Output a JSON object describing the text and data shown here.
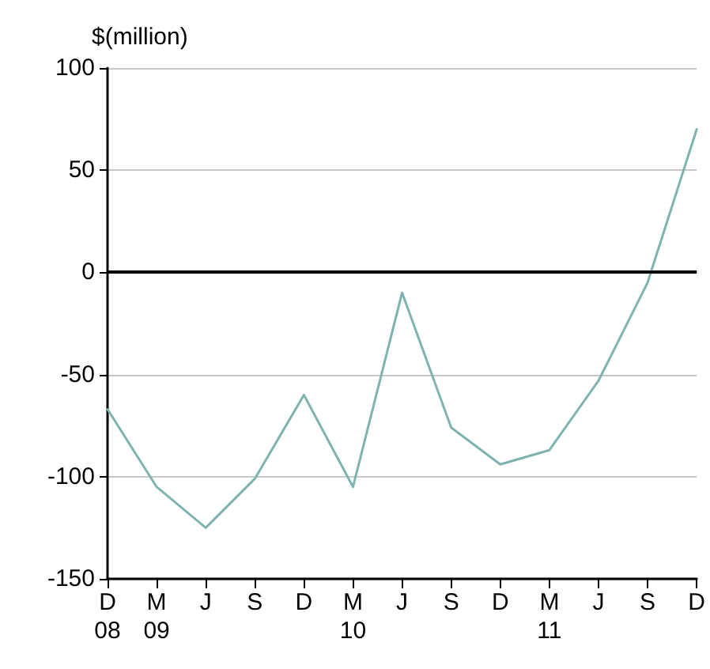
{
  "chart_data": {
    "type": "line",
    "ylabel": "$(million)",
    "categories": [
      "D\n08",
      "M\n09",
      "J",
      "S",
      "D",
      "M\n10",
      "J",
      "S",
      "D",
      "M\n11",
      "J",
      "S",
      "D"
    ],
    "series": [
      {
        "color": "#7fb3b0",
        "values": [
          -67,
          -105,
          -125,
          -101,
          -60,
          -105,
          -10,
          -76,
          -94,
          -87,
          -53,
          -5,
          70
        ]
      }
    ],
    "ylim": [
      -150,
      100
    ],
    "yticks": [
      -150,
      -100,
      -50,
      0,
      50,
      100
    ],
    "grid": "y",
    "marker": "none",
    "line_style": "solid",
    "ref_lines": [
      {
        "axis": "y",
        "value": 0,
        "label": null,
        "color": "#000000"
      }
    ]
  }
}
